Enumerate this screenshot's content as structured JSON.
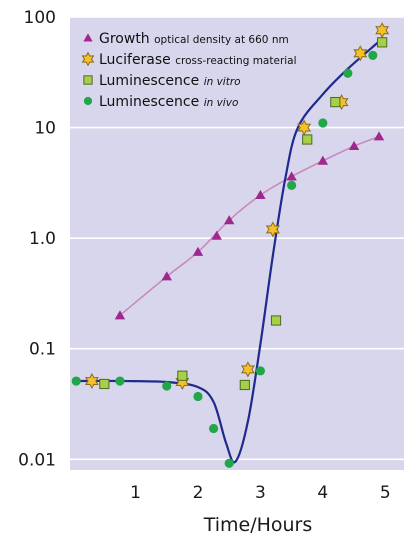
{
  "chart_data": {
    "type": "scatter",
    "yscale": "log",
    "xlim": [
      -0.05,
      5.3
    ],
    "ylim": [
      0.008,
      100
    ],
    "grid": true,
    "legend_position": "top-left",
    "xlabel": "Time/Hours",
    "ylabel": "",
    "x_ticks": [
      1,
      2,
      3,
      4,
      5
    ],
    "x_tick_labels": [
      "1",
      "2",
      "3",
      "4",
      "5"
    ],
    "y_ticks": [
      0.01,
      0.1,
      1,
      10,
      100
    ],
    "y_tick_labels": [
      "0.01",
      "0.1",
      "1.0",
      "10",
      "100"
    ],
    "colors": {
      "plot_background": "#d8d6ec",
      "grid": "#ffffff",
      "growth": "#a0288c",
      "growth_line": "#c98ac0",
      "luciferase": "#f5c02a",
      "luciferase_edge": "#8a6d1a",
      "invitro": "#a8cf4a",
      "invitro_edge": "#4a6a1e",
      "invivo": "#22a64a",
      "fit_line": "#1f2a8c"
    },
    "series": [
      {
        "name": "Growth",
        "name_suffix": "optical density at 660 nm",
        "name_suffix_italic": false,
        "marker": "triangle",
        "x": [
          0.75,
          1.5,
          2.0,
          2.3,
          2.5,
          3.0,
          3.5,
          4.0,
          4.5,
          4.9
        ],
        "y": [
          0.2,
          0.45,
          0.75,
          1.05,
          1.45,
          2.45,
          3.6,
          5.0,
          6.8,
          8.3
        ]
      },
      {
        "name": "Luciferase",
        "name_suffix": "cross-reacting material",
        "name_suffix_italic": false,
        "marker": "star",
        "x": [
          0.3,
          1.75,
          2.8,
          3.2,
          3.7,
          4.3,
          4.6,
          4.95
        ],
        "y": [
          0.051,
          0.05,
          0.065,
          1.2,
          10,
          17,
          47,
          76
        ]
      },
      {
        "name": "Luminescence",
        "name_suffix": "in vitro",
        "name_suffix_italic": true,
        "marker": "square",
        "x": [
          0.5,
          1.75,
          2.75,
          3.25,
          3.75,
          4.2,
          4.95
        ],
        "y": [
          0.048,
          0.057,
          0.047,
          0.18,
          7.8,
          17,
          59
        ]
      },
      {
        "name": "Luminescence",
        "name_suffix": "in vivo",
        "name_suffix_italic": true,
        "marker": "circle",
        "x": [
          0.05,
          0.75,
          1.5,
          2.0,
          2.25,
          2.5,
          3.0,
          3.5,
          4.0,
          4.4,
          4.8
        ],
        "y": [
          0.051,
          0.051,
          0.046,
          0.037,
          0.019,
          0.0092,
          0.063,
          3.0,
          11,
          31,
          45
        ]
      }
    ],
    "fit_lines": [
      {
        "name": "growth-fit",
        "x": [
          0.75,
          1.5,
          2.0,
          2.5,
          3.0,
          3.5,
          4.0,
          4.5,
          4.9
        ],
        "y": [
          0.2,
          0.45,
          0.75,
          1.45,
          2.45,
          3.6,
          5.0,
          6.8,
          8.3
        ]
      },
      {
        "name": "luminescence-fit",
        "x": [
          0.05,
          0.75,
          1.5,
          2.0,
          2.25,
          2.45,
          2.6,
          2.8,
          3.0,
          3.2,
          3.4,
          3.6,
          4.0,
          4.4,
          4.9
        ],
        "y": [
          0.051,
          0.051,
          0.05,
          0.045,
          0.033,
          0.014,
          0.0095,
          0.022,
          0.11,
          0.7,
          3.5,
          10,
          20,
          34,
          60
        ]
      }
    ]
  }
}
